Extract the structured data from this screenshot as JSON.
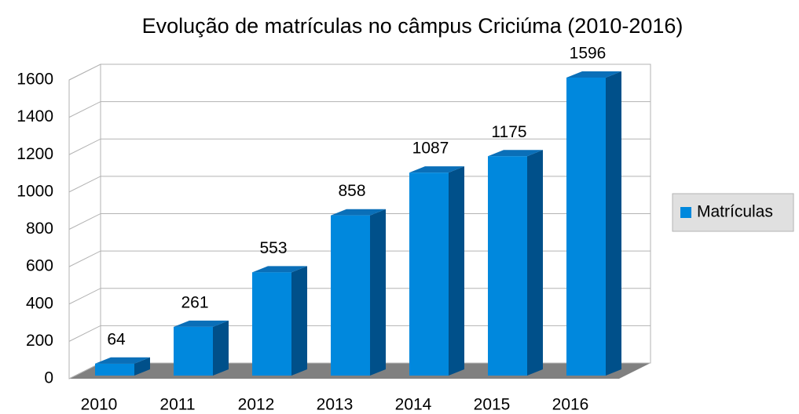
{
  "chart_data": {
    "type": "bar3d",
    "title": "Evolução de matrículas no câmpus Criciúma (2010-2016)",
    "categories": [
      "2010",
      "2011",
      "2012",
      "2013",
      "2014",
      "2015",
      "2016"
    ],
    "series": [
      {
        "name": "Matrículas",
        "color": "#0088dd",
        "values": [
          64,
          261,
          553,
          858,
          1087,
          1175,
          1596
        ]
      }
    ],
    "ylim": [
      0,
      1600
    ],
    "yticks": [
      0,
      200,
      400,
      600,
      800,
      1000,
      1200,
      1400,
      1600
    ],
    "grid": true,
    "legend": "right"
  }
}
